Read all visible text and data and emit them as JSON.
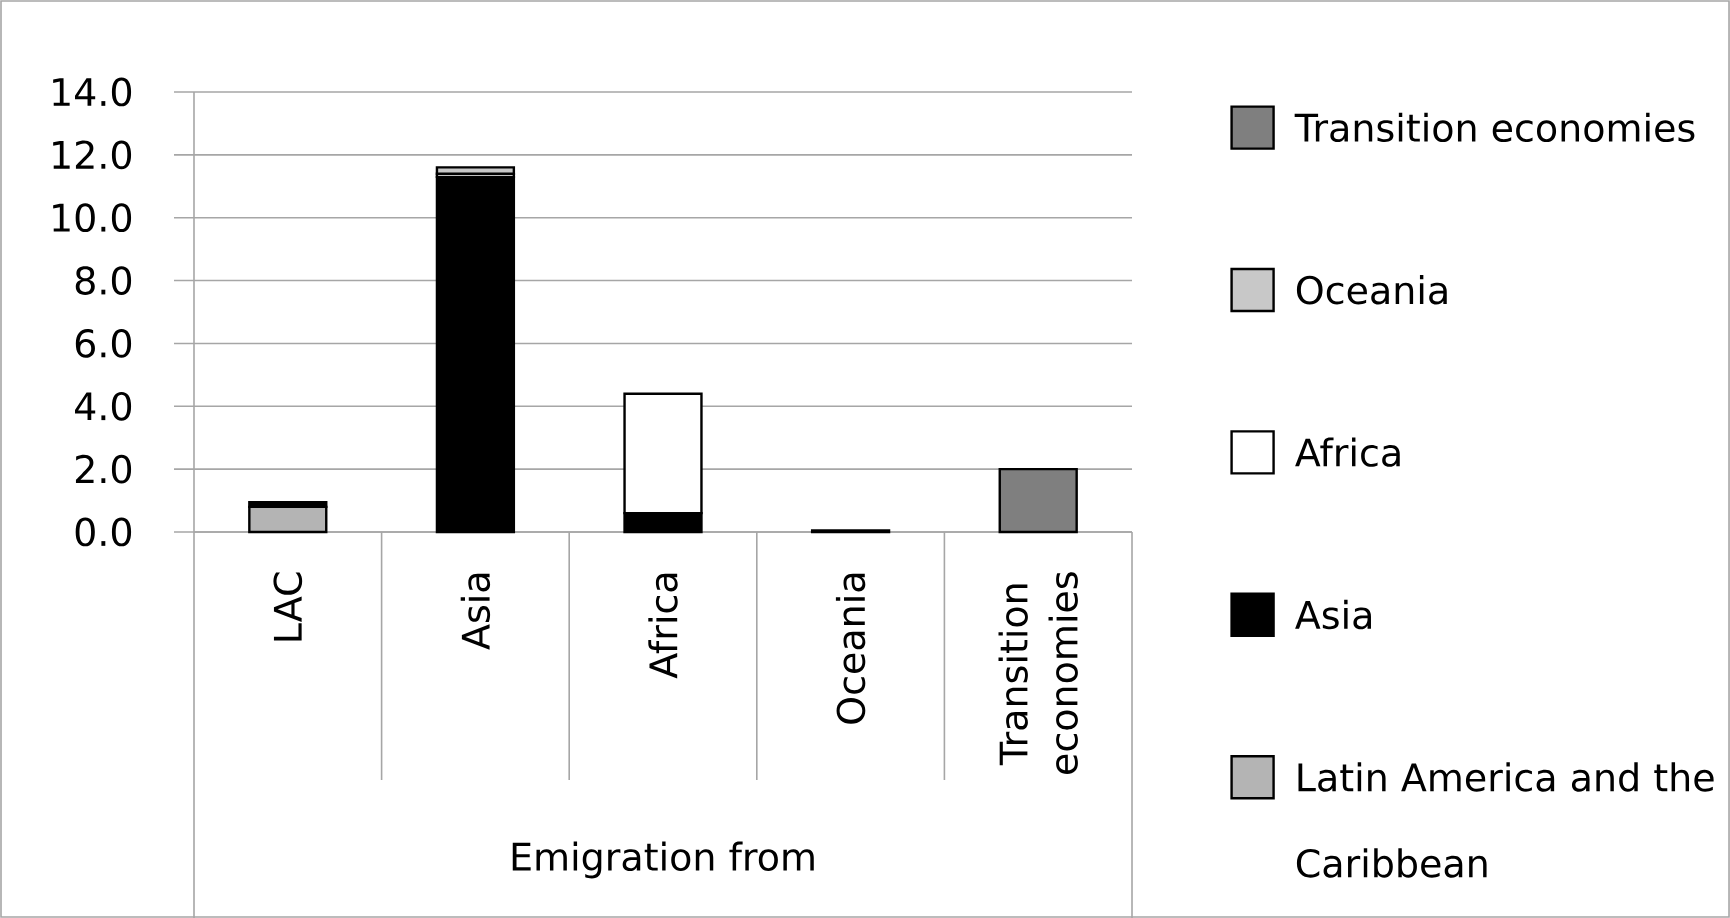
{
  "chart_data": {
    "type": "bar",
    "stacked": true,
    "xlabel": "Emigration from",
    "categories": [
      "LAC",
      "Asia",
      "Africa",
      "Oceania",
      "Transition economies"
    ],
    "series": [
      {
        "name": "Latin America and the Caribbean",
        "color": "#b4b4b4",
        "values": [
          0.8,
          null,
          null,
          null,
          null
        ]
      },
      {
        "name": "Asia",
        "color": "#000000",
        "values": [
          0.15,
          11.3,
          0.6,
          null,
          null
        ]
      },
      {
        "name": "Africa",
        "color": "#ffffff",
        "values": [
          null,
          0.1,
          3.8,
          null,
          null
        ]
      },
      {
        "name": "Oceania",
        "color": "#c8c8c8",
        "values": [
          null,
          0.2,
          null,
          0.05,
          null
        ]
      },
      {
        "name": "Transition economies",
        "color": "#7f7f7f",
        "values": [
          null,
          null,
          null,
          null,
          2.0
        ]
      }
    ],
    "ylim": [
      0,
      14
    ],
    "yticks": [
      {
        "value": 0,
        "label": "0.0"
      },
      {
        "value": 2,
        "label": "2.0"
      },
      {
        "value": 4,
        "label": "4.0"
      },
      {
        "value": 6,
        "label": "6.0"
      },
      {
        "value": 8,
        "label": "8.0"
      },
      {
        "value": 10,
        "label": "10.0"
      },
      {
        "value": 12,
        "label": "12.0"
      },
      {
        "value": 14,
        "label": "14.0"
      }
    ],
    "grid": "y",
    "legend": "right"
  }
}
